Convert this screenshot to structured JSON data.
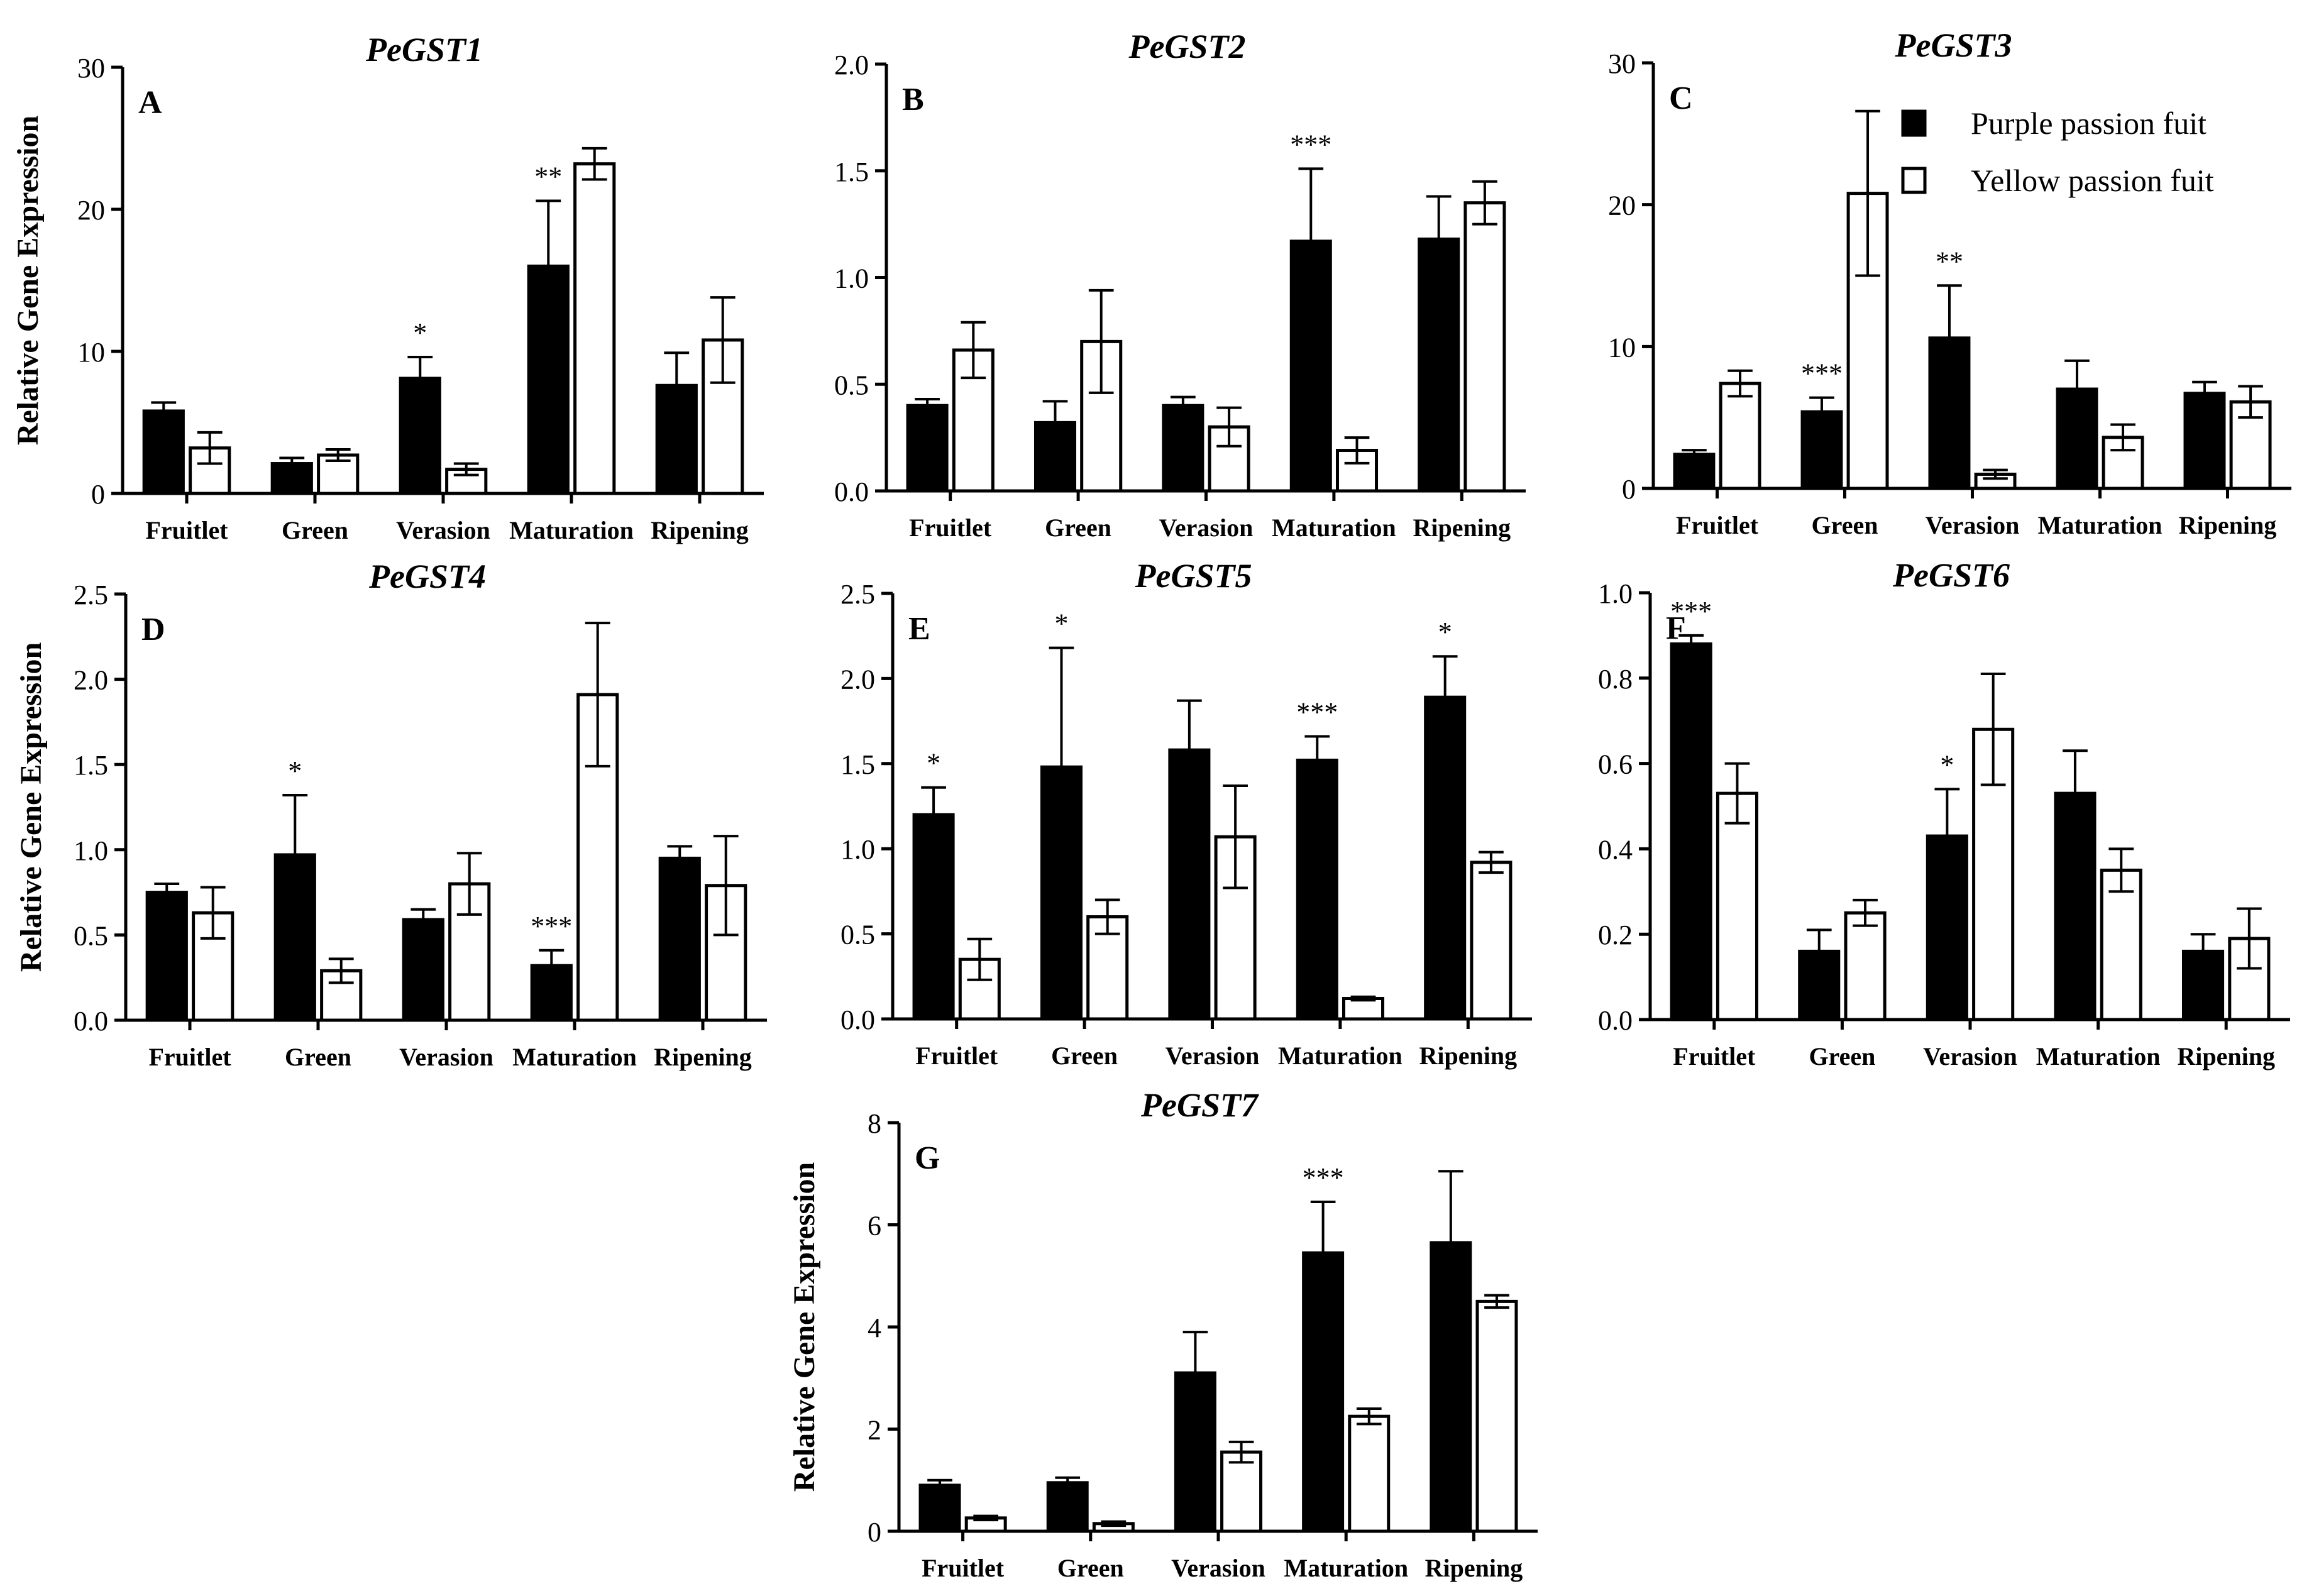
{
  "figure": {
    "legend": {
      "items": [
        {
          "label": "Purple passion fuit",
          "swatch": "filled"
        },
        {
          "label": "Yellow passion fuit",
          "swatch": "hollow"
        }
      ]
    }
  },
  "colors": {
    "purple_fill": "#000000",
    "yellow_fill": "#ffffff",
    "stroke": "#000000"
  },
  "chart_data": [
    {
      "panel": "A",
      "title": "PeGST1",
      "type": "bar",
      "ylabel": "Relative Gene Expression",
      "ylim": [
        0,
        30
      ],
      "yticks": [
        "0",
        "10",
        "20",
        "30"
      ],
      "categories": [
        "Fruitlet",
        "Green",
        "Verasion",
        "Maturation",
        "Ripening"
      ],
      "series": [
        {
          "name": "Purple passion fuit",
          "values": [
            5.8,
            2.1,
            8.1,
            16.0,
            7.6
          ],
          "errors": [
            0.6,
            0.4,
            1.5,
            4.6,
            2.3
          ]
        },
        {
          "name": "Yellow passion fuit",
          "values": [
            3.2,
            2.7,
            1.7,
            23.2,
            10.8
          ],
          "errors": [
            1.1,
            0.4,
            0.4,
            1.1,
            3.0
          ]
        }
      ],
      "significance": [
        "",
        "",
        "*",
        "**",
        ""
      ]
    },
    {
      "panel": "B",
      "title": "PeGST2",
      "type": "bar",
      "ylabel": "",
      "ylim": [
        0,
        2.0
      ],
      "yticks": [
        "0.0",
        "0.5",
        "1.0",
        "1.5",
        "2.0"
      ],
      "categories": [
        "Fruitlet",
        "Green",
        "Verasion",
        "Maturation",
        "Ripening"
      ],
      "series": [
        {
          "name": "Purple passion fuit",
          "values": [
            0.4,
            0.32,
            0.4,
            1.17,
            1.18
          ],
          "errors": [
            0.03,
            0.1,
            0.04,
            0.34,
            0.2
          ]
        },
        {
          "name": "Yellow passion fuit",
          "values": [
            0.66,
            0.7,
            0.3,
            0.19,
            1.35
          ],
          "errors": [
            0.13,
            0.24,
            0.09,
            0.06,
            0.1
          ]
        }
      ],
      "significance": [
        "",
        "",
        "",
        "***",
        ""
      ]
    },
    {
      "panel": "C",
      "title": "PeGST3",
      "type": "bar",
      "ylabel": "",
      "ylim": [
        0,
        30
      ],
      "yticks": [
        "0",
        "10",
        "20",
        "30"
      ],
      "categories": [
        "Fruitlet",
        "Green",
        "Verasion",
        "Maturation",
        "Ripening"
      ],
      "series": [
        {
          "name": "Purple passion fuit",
          "values": [
            2.4,
            5.4,
            10.6,
            7.0,
            6.7
          ],
          "errors": [
            0.3,
            1.0,
            3.7,
            2.0,
            0.8
          ]
        },
        {
          "name": "Yellow passion fuit",
          "values": [
            7.4,
            20.8,
            1.0,
            3.6,
            6.1
          ],
          "errors": [
            0.9,
            5.8,
            0.3,
            0.9,
            1.1
          ]
        }
      ],
      "significance": [
        "",
        "***",
        "**",
        "",
        ""
      ]
    },
    {
      "panel": "D",
      "title": "PeGST4",
      "type": "bar",
      "ylabel": "Relative Gene Expression",
      "ylim": [
        0,
        2.5
      ],
      "yticks": [
        "0.0",
        "0.5",
        "1.0",
        "1.5",
        "2.0",
        "2.5"
      ],
      "categories": [
        "Fruitlet",
        "Green",
        "Verasion",
        "Maturation",
        "Ripening"
      ],
      "series": [
        {
          "name": "Purple passion fuit",
          "values": [
            0.75,
            0.97,
            0.59,
            0.32,
            0.95
          ],
          "errors": [
            0.05,
            0.35,
            0.06,
            0.09,
            0.07
          ]
        },
        {
          "name": "Yellow passion fuit",
          "values": [
            0.63,
            0.29,
            0.8,
            1.91,
            0.79
          ],
          "errors": [
            0.15,
            0.07,
            0.18,
            0.42,
            0.29
          ]
        }
      ],
      "significance": [
        "",
        "*",
        "",
        "***",
        ""
      ]
    },
    {
      "panel": "E",
      "title": "PeGST5",
      "type": "bar",
      "ylabel": "",
      "ylim": [
        0,
        2.5
      ],
      "yticks": [
        "0.0",
        "0.5",
        "1.0",
        "1.5",
        "2.0",
        "2.5"
      ],
      "categories": [
        "Fruitlet",
        "Green",
        "Verasion",
        "Maturation",
        "Ripening"
      ],
      "series": [
        {
          "name": "Purple passion fuit",
          "values": [
            1.2,
            1.48,
            1.58,
            1.52,
            1.89
          ],
          "errors": [
            0.16,
            0.7,
            0.29,
            0.14,
            0.24
          ]
        },
        {
          "name": "Yellow passion fuit",
          "values": [
            0.35,
            0.6,
            1.07,
            0.12,
            0.92
          ],
          "errors": [
            0.12,
            0.1,
            0.3,
            0.01,
            0.06
          ]
        }
      ],
      "significance": [
        "*",
        "*",
        "",
        "***",
        "*"
      ]
    },
    {
      "panel": "F",
      "title": "PeGST6",
      "type": "bar",
      "ylabel": "",
      "ylim": [
        0,
        1.0
      ],
      "yticks": [
        "0.0",
        "0.2",
        "0.4",
        "0.6",
        "0.8",
        "1.0"
      ],
      "categories": [
        "Fruitlet",
        "Green",
        "Verasion",
        "Maturation",
        "Ripening"
      ],
      "series": [
        {
          "name": "Purple passion fuit",
          "values": [
            0.88,
            0.16,
            0.43,
            0.53,
            0.16
          ],
          "errors": [
            0.02,
            0.05,
            0.11,
            0.1,
            0.04
          ]
        },
        {
          "name": "Yellow passion fuit",
          "values": [
            0.53,
            0.25,
            0.68,
            0.35,
            0.19
          ],
          "errors": [
            0.07,
            0.03,
            0.13,
            0.05,
            0.07
          ]
        }
      ],
      "significance": [
        "***",
        "",
        "*",
        "",
        ""
      ]
    },
    {
      "panel": "G",
      "title": "PeGST7",
      "type": "bar",
      "ylabel": "Relative Gene Expression",
      "ylim": [
        0,
        8
      ],
      "yticks": [
        "0",
        "2",
        "4",
        "6",
        "8"
      ],
      "categories": [
        "Fruitlet",
        "Green",
        "Verasion",
        "Maturation",
        "Ripening"
      ],
      "series": [
        {
          "name": "Purple passion fuit",
          "values": [
            0.9,
            0.95,
            3.1,
            5.45,
            5.65
          ],
          "errors": [
            0.1,
            0.1,
            0.8,
            1.0,
            1.4
          ]
        },
        {
          "name": "Yellow passion fuit",
          "values": [
            0.26,
            0.15,
            1.55,
            2.25,
            4.5
          ],
          "errors": [
            0.04,
            0.04,
            0.2,
            0.15,
            0.12
          ]
        }
      ],
      "significance": [
        "",
        "",
        "",
        "***",
        ""
      ]
    }
  ]
}
